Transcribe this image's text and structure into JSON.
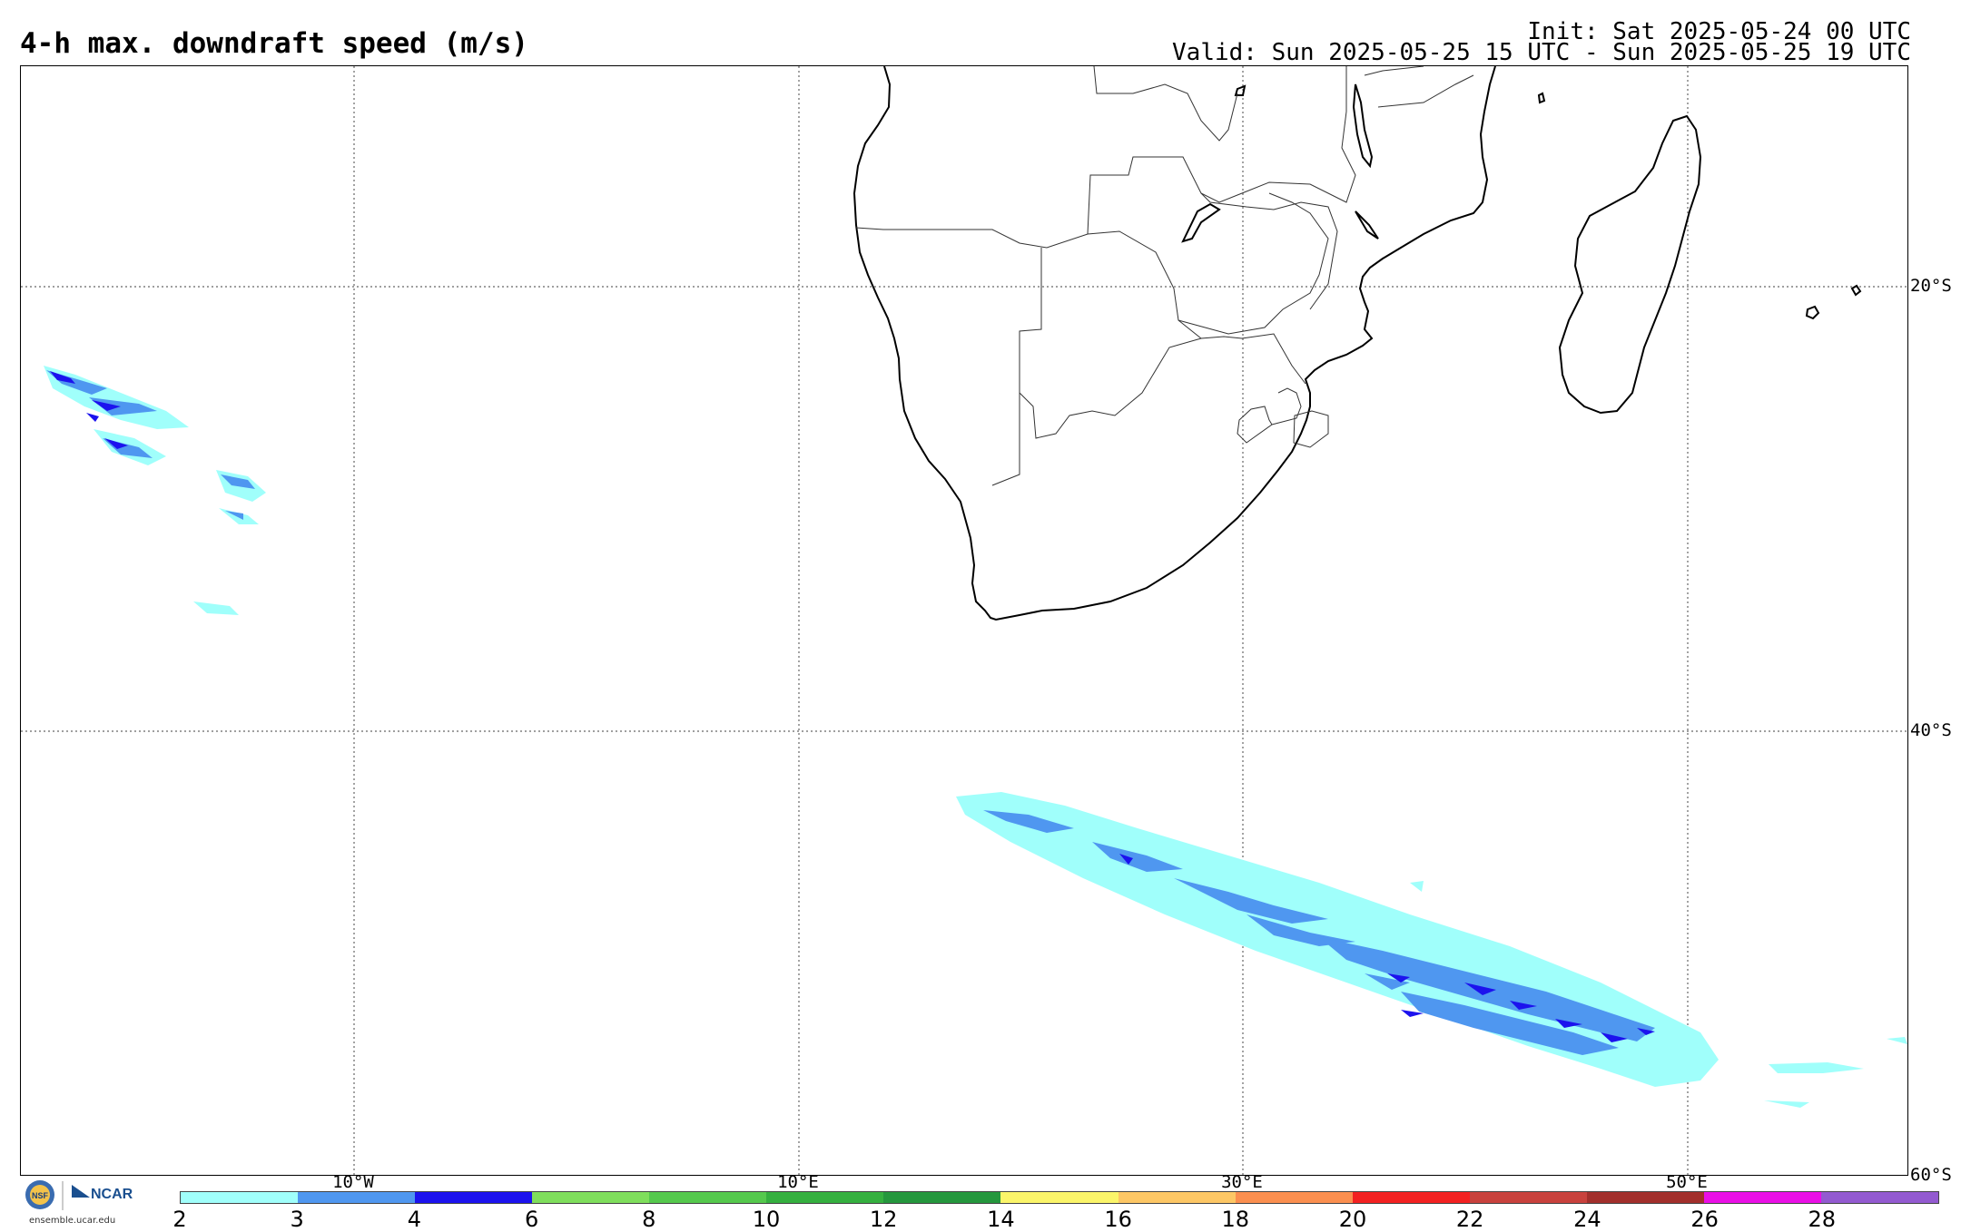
{
  "header": {
    "title": "4-h max. downdraft speed (m/s)",
    "init": "Init: Sat 2025-05-24 00 UTC",
    "valid": "Valid: Sun 2025-05-25 15 UTC - Sun 2025-05-25 19 UTC"
  },
  "map": {
    "lat_labels": [
      "20°S",
      "40°S",
      "60°S"
    ],
    "lon_labels": [
      "10°W",
      "10°E",
      "30°E",
      "50°E"
    ]
  },
  "colorbar": {
    "colors": [
      "#a0fffb",
      "#4f97f0",
      "#1c12ee",
      "#7fde5c",
      "#55c94d",
      "#35b03f",
      "#25973d",
      "#fbf56a",
      "#fdc765",
      "#fb8f4f",
      "#f32121",
      "#c9423d",
      "#a22f2c",
      "#ea0fe6",
      "#935ad0"
    ],
    "tick_labels": [
      "2",
      "3",
      "4",
      "6",
      "8",
      "10",
      "12",
      "14",
      "16",
      "18",
      "20",
      "22",
      "24",
      "26",
      "28"
    ]
  },
  "logo": {
    "org": "NCAR",
    "badge": "NSF",
    "url": "ensemble.ucar.edu"
  }
}
